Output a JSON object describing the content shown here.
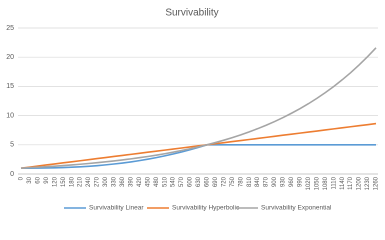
{
  "chart_data": {
    "type": "line",
    "title": "Survivability",
    "categories": [
      0,
      30,
      60,
      90,
      120,
      150,
      180,
      210,
      240,
      270,
      300,
      330,
      360,
      390,
      420,
      450,
      480,
      510,
      540,
      570,
      600,
      630,
      660,
      690,
      720,
      750,
      780,
      810,
      840,
      870,
      900,
      930,
      960,
      990,
      1020,
      1050,
      1080,
      1110,
      1140,
      1170,
      1200,
      1230,
      1260
    ],
    "ylim": [
      0,
      25
    ],
    "yticks": [
      0,
      5,
      10,
      15,
      20,
      25
    ],
    "grid": true,
    "legend": "bottom",
    "series": [
      {
        "name": "Survivability Linear",
        "color": "#5b9bd5",
        "values": [
          1,
          1.0,
          1.01,
          1.03,
          1.06,
          1.1,
          1.16,
          1.23,
          1.32,
          1.43,
          1.56,
          1.71,
          1.88,
          2.07,
          2.29,
          2.54,
          2.8,
          3.1,
          3.42,
          3.77,
          4.15,
          4.56,
          5,
          5,
          5,
          5,
          5,
          5,
          5,
          5,
          5,
          5,
          5,
          5,
          5,
          5,
          5,
          5,
          5,
          5,
          5,
          5,
          5
        ]
      },
      {
        "name": "Survivability Hyperbolic",
        "color": "#ed7d31",
        "values": [
          1,
          1.18,
          1.36,
          1.55,
          1.73,
          1.91,
          2.09,
          2.27,
          2.45,
          2.64,
          2.82,
          3,
          3.18,
          3.36,
          3.55,
          3.73,
          3.91,
          4.09,
          4.27,
          4.45,
          4.64,
          4.82,
          5,
          5.18,
          5.36,
          5.55,
          5.73,
          5.91,
          6.09,
          6.27,
          6.45,
          6.64,
          6.82,
          7,
          7.18,
          7.36,
          7.55,
          7.73,
          7.91,
          8.09,
          8.27,
          8.45,
          8.64
        ]
      },
      {
        "name": "Survivability Exponential",
        "color": "#a5a5a5",
        "values": [
          1,
          1.08,
          1.16,
          1.25,
          1.34,
          1.44,
          1.55,
          1.67,
          1.8,
          1.93,
          2.08,
          2.24,
          2.41,
          2.59,
          2.79,
          3,
          3.22,
          3.47,
          3.73,
          4.02,
          4.32,
          4.65,
          5,
          5.38,
          5.79,
          6.23,
          6.7,
          7.21,
          7.76,
          8.35,
          8.98,
          9.66,
          10.4,
          11.18,
          12.03,
          12.95,
          13.93,
          14.99,
          16.13,
          17.35,
          18.67,
          20.09,
          21.61
        ]
      }
    ]
  }
}
